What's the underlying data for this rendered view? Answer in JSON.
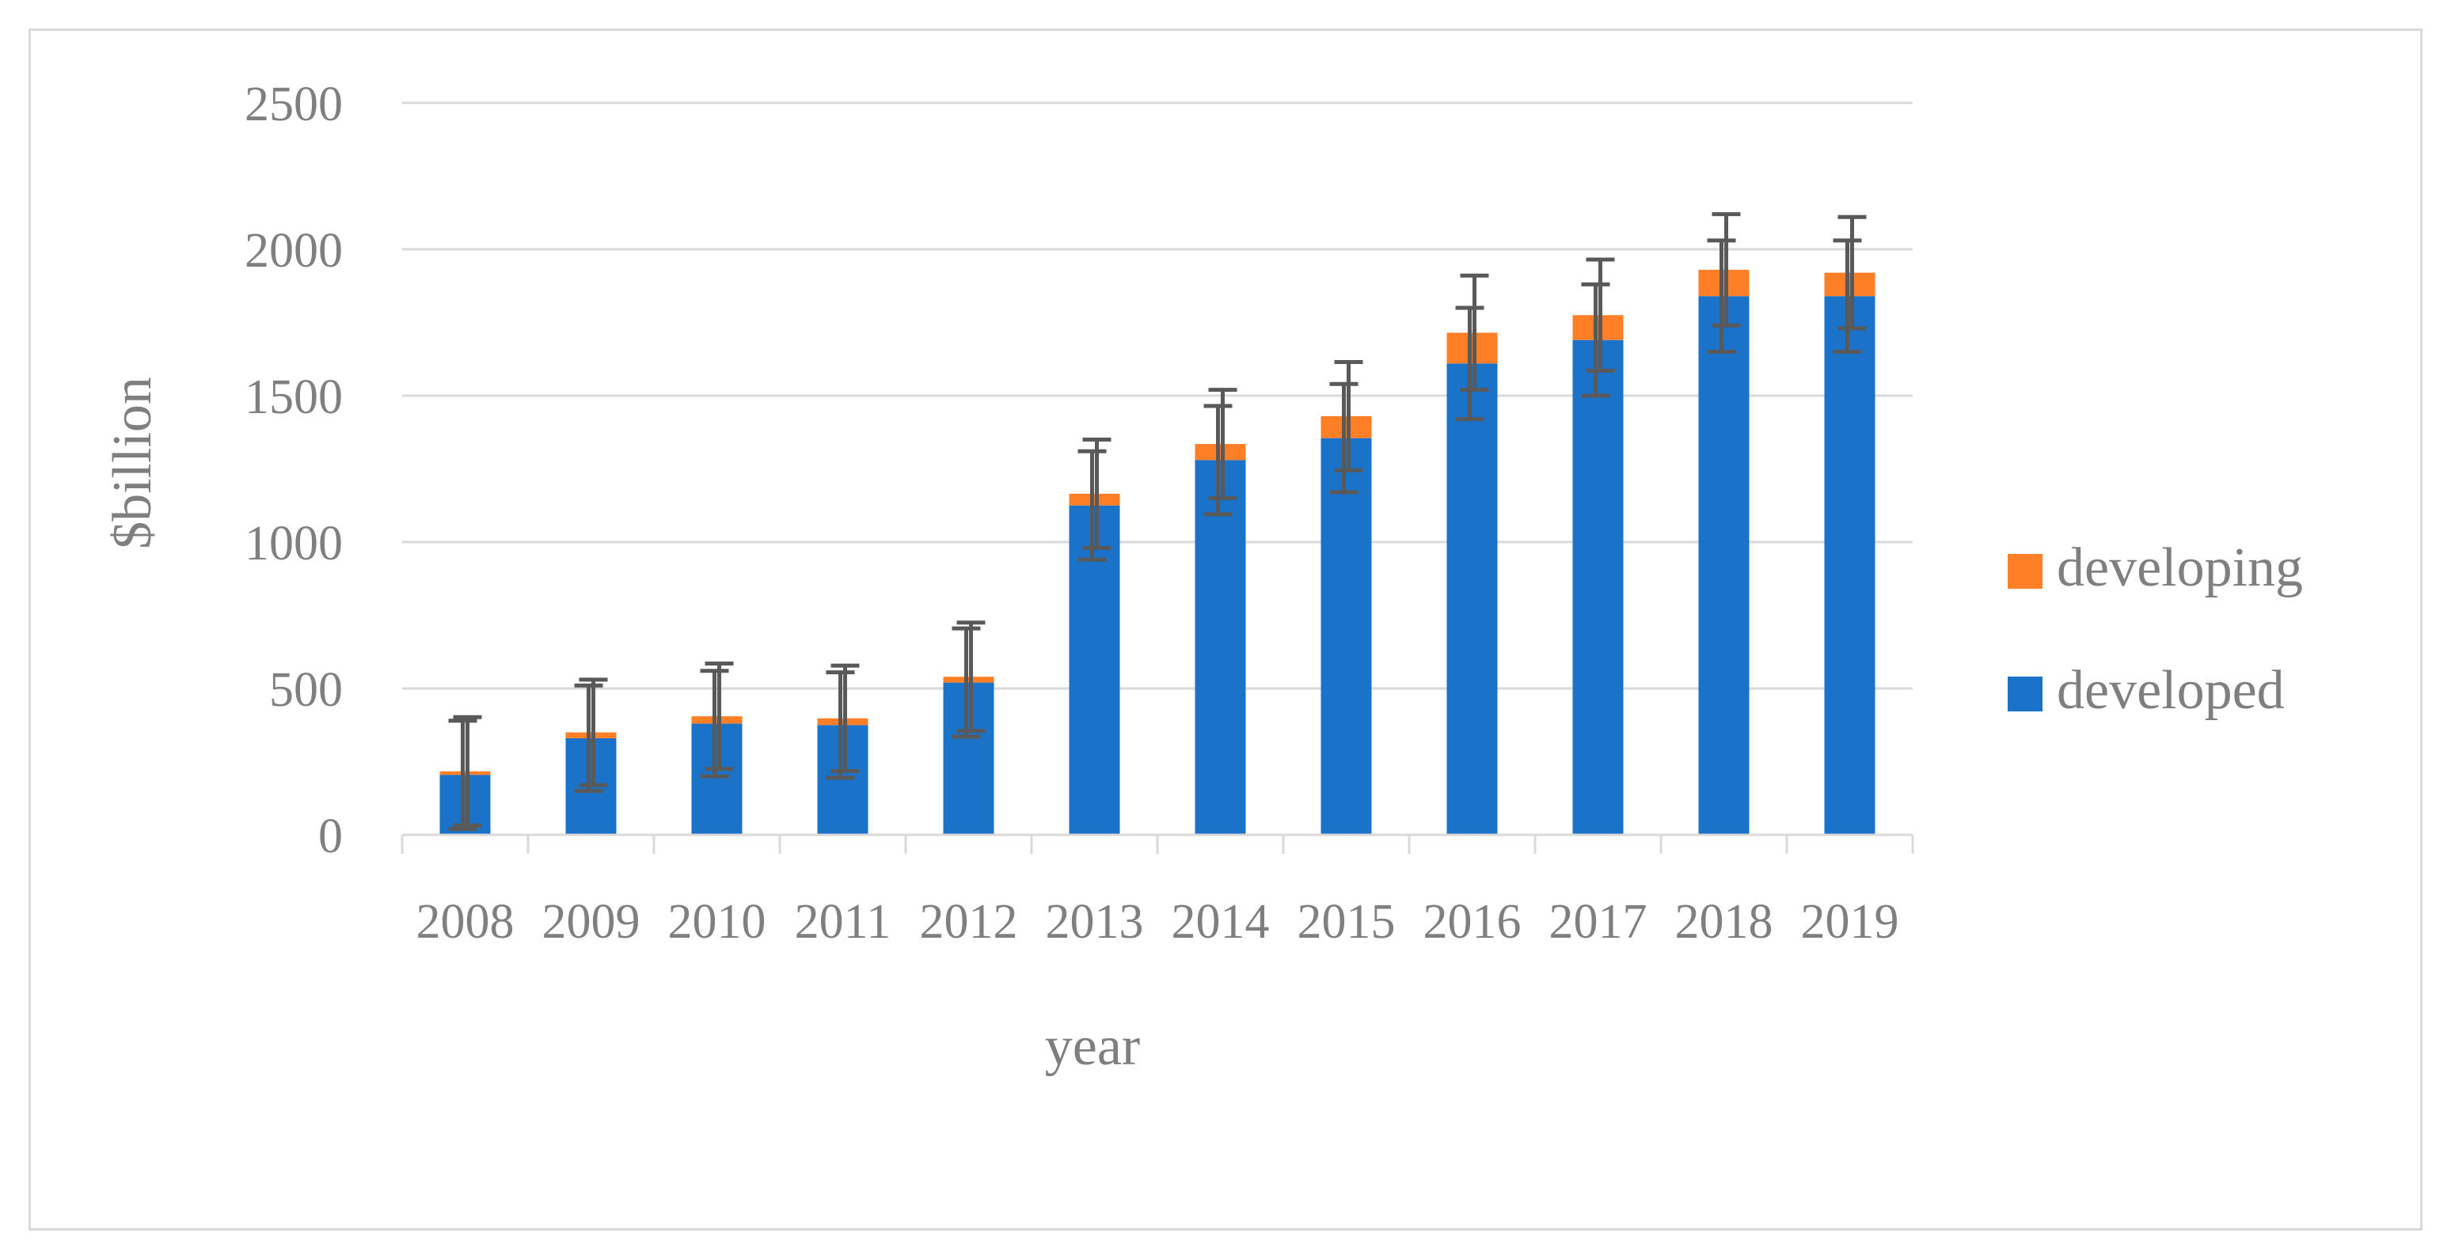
{
  "chart_data": {
    "type": "bar",
    "stacked": true,
    "title": "",
    "xlabel": "year",
    "ylabel": "$billion",
    "ylim": [
      0,
      2500
    ],
    "yticks": [
      "0",
      "500",
      "1000",
      "1500",
      "2000",
      "2500"
    ],
    "ytick_values": [
      0,
      500,
      1000,
      1500,
      2000,
      2500
    ],
    "categories": [
      "2008",
      "2009",
      "2010",
      "2011",
      "2012",
      "2013",
      "2014",
      "2015",
      "2016",
      "2017",
      "2018",
      "2019"
    ],
    "series": [
      {
        "name": "developed",
        "color": "#1a73c9",
        "values": [
          205,
          330,
          380,
          375,
          520,
          1125,
          1280,
          1355,
          1610,
          1690,
          1840,
          1840
        ],
        "error": [
          185,
          180,
          180,
          180,
          185,
          185,
          185,
          185,
          190,
          190,
          190,
          190
        ]
      },
      {
        "name": "developing",
        "color": "#ff7f27",
        "values": [
          12,
          20,
          25,
          23,
          20,
          40,
          55,
          75,
          105,
          85,
          90,
          80
        ],
        "error": [
          185,
          180,
          180,
          180,
          185,
          185,
          185,
          185,
          195,
          190,
          190,
          190
        ]
      }
    ],
    "grid": true,
    "legend_position": "right",
    "error_bar_color": "#595959"
  }
}
